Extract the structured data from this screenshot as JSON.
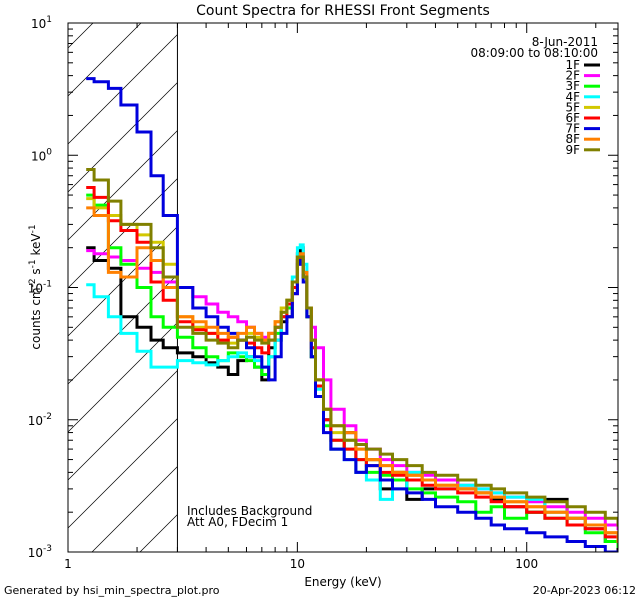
{
  "chart_data": {
    "type": "line",
    "title": "Count Spectra for RHESSI Front Segments",
    "xlabel": "Energy (keV)",
    "ylabel_parts": [
      "counts cm",
      "-2",
      " s",
      "-1",
      " keV",
      "-1"
    ],
    "xscale": "log",
    "yscale": "log",
    "xlim": [
      1,
      250
    ],
    "ylim": [
      0.001,
      10
    ],
    "x_ticks": [
      {
        "value": 1,
        "label": "1"
      },
      {
        "value": 10,
        "label": "10"
      },
      {
        "value": 100,
        "label": "100"
      }
    ],
    "y_ticks": [
      {
        "value": 10,
        "base": "10",
        "exp": "1"
      },
      {
        "value": 1,
        "base": "10",
        "exp": "0"
      },
      {
        "value": 0.1,
        "base": "10",
        "exp": "-1"
      },
      {
        "value": 0.01,
        "base": "10",
        "exp": "-2"
      },
      {
        "value": 0.001,
        "base": "10",
        "exp": "-3"
      }
    ],
    "date": "8-Jun-2011",
    "time_range": "08:09:00 to 08:10:00",
    "annotation_lines": [
      "Includes Background",
      "Att A0, FDecim 1"
    ],
    "hatched_region": [
      1,
      3
    ],
    "series": [
      {
        "name": "1F",
        "color": "#000000",
        "x": [
          1.2,
          1.3,
          1.5,
          1.7,
          2.0,
          2.3,
          2.6,
          3.0,
          3.5,
          4.0,
          4.5,
          5.0,
          5.5,
          6.0,
          6.5,
          7.0,
          7.5,
          8.0,
          8.5,
          9.0,
          9.5,
          10.0,
          10.3,
          10.6,
          11.0,
          11.5,
          12.0,
          13.0,
          14.0,
          16.0,
          18.0,
          20.0,
          23.0,
          26.0,
          30.0,
          35.0,
          40.0,
          50.0,
          60.0,
          70.0,
          80.0,
          100.0,
          120.0,
          150.0,
          180.0,
          220.0,
          250.0
        ],
        "y": [
          0.2,
          0.16,
          0.14,
          0.06,
          0.05,
          0.04,
          0.035,
          0.032,
          0.03,
          0.027,
          0.025,
          0.022,
          0.028,
          0.03,
          0.025,
          0.02,
          0.035,
          0.04,
          0.055,
          0.06,
          0.09,
          0.18,
          0.2,
          0.13,
          0.06,
          0.03,
          0.015,
          0.01,
          0.006,
          0.008,
          0.004,
          0.005,
          0.003,
          0.004,
          0.0025,
          0.003,
          0.0035,
          0.003,
          0.0028,
          0.0025,
          0.0022,
          0.002,
          0.0025,
          0.0018,
          0.0015,
          0.0012,
          0.001
        ]
      },
      {
        "name": "2F",
        "color": "#ff00ff",
        "x": [
          1.2,
          1.3,
          1.5,
          1.7,
          2.0,
          2.3,
          2.6,
          3.0,
          3.5,
          4.0,
          4.5,
          5.0,
          5.5,
          6.0,
          6.5,
          7.0,
          7.5,
          8.0,
          8.5,
          9.0,
          9.5,
          10.0,
          10.3,
          10.6,
          11.0,
          11.5,
          12.0,
          13.0,
          14.0,
          16.0,
          18.0,
          20.0,
          23.0,
          26.0,
          30.0,
          35.0,
          40.0,
          50.0,
          60.0,
          70.0,
          80.0,
          100.0,
          120.0,
          150.0,
          180.0,
          220.0,
          250.0
        ],
        "y": [
          0.19,
          0.18,
          0.17,
          0.16,
          0.14,
          0.13,
          0.11,
          0.1,
          0.085,
          0.075,
          0.065,
          0.06,
          0.055,
          0.05,
          0.045,
          0.042,
          0.045,
          0.05,
          0.06,
          0.07,
          0.09,
          0.15,
          0.17,
          0.12,
          0.07,
          0.05,
          0.035,
          0.02,
          0.012,
          0.009,
          0.007,
          0.006,
          0.005,
          0.0045,
          0.004,
          0.0038,
          0.0035,
          0.0032,
          0.003,
          0.0028,
          0.0026,
          0.0024,
          0.0022,
          0.002,
          0.0018,
          0.0016,
          0.0015
        ]
      },
      {
        "name": "3F",
        "color": "#00ff00",
        "x": [
          1.2,
          1.3,
          1.5,
          1.7,
          2.0,
          2.3,
          2.6,
          3.0,
          3.5,
          4.0,
          4.5,
          5.0,
          5.5,
          6.0,
          6.5,
          7.0,
          7.5,
          8.0,
          8.5,
          9.0,
          9.5,
          10.0,
          10.3,
          10.6,
          11.0,
          11.5,
          12.0,
          13.0,
          14.0,
          16.0,
          18.0,
          20.0,
          23.0,
          26.0,
          30.0,
          35.0,
          40.0,
          50.0,
          60.0,
          70.0,
          80.0,
          100.0,
          120.0,
          150.0,
          180.0,
          220.0,
          250.0
        ],
        "y": [
          0.5,
          0.42,
          0.2,
          0.15,
          0.1,
          0.06,
          0.05,
          0.042,
          0.035,
          0.03,
          0.028,
          0.032,
          0.03,
          0.028,
          0.025,
          0.022,
          0.03,
          0.045,
          0.06,
          0.07,
          0.1,
          0.16,
          0.17,
          0.12,
          0.06,
          0.03,
          0.015,
          0.009,
          0.007,
          0.006,
          0.005,
          0.004,
          0.0038,
          0.0035,
          0.003,
          0.0028,
          0.0026,
          0.0024,
          0.002,
          0.0022,
          0.0018,
          0.002,
          0.0018,
          0.0016,
          0.0014,
          0.0012,
          0.0011
        ]
      },
      {
        "name": "4F",
        "color": "#00ffff",
        "x": [
          1.2,
          1.3,
          1.5,
          1.7,
          2.0,
          2.3,
          2.6,
          3.0,
          3.5,
          4.0,
          4.5,
          5.0,
          5.5,
          6.0,
          6.5,
          7.0,
          7.5,
          8.0,
          8.5,
          9.0,
          9.5,
          10.0,
          10.3,
          10.6,
          11.0,
          11.5,
          12.0,
          13.0,
          14.0,
          16.0,
          18.0,
          20.0,
          23.0,
          26.0,
          30.0,
          35.0,
          40.0,
          50.0,
          60.0,
          70.0,
          80.0,
          100.0,
          120.0,
          150.0,
          180.0,
          220.0,
          250.0
        ],
        "y": [
          0.105,
          0.085,
          0.06,
          0.045,
          0.033,
          0.025,
          0.025,
          0.028,
          0.027,
          0.026,
          0.028,
          0.03,
          0.032,
          0.03,
          0.028,
          0.025,
          0.03,
          0.04,
          0.06,
          0.08,
          0.12,
          0.2,
          0.21,
          0.15,
          0.07,
          0.035,
          0.017,
          0.01,
          0.006,
          0.005,
          0.004,
          0.0035,
          0.0025,
          0.003,
          0.004,
          0.0035,
          0.003,
          0.0032,
          0.003,
          0.0028,
          0.0026,
          0.0025,
          0.002,
          0.0018,
          0.0015,
          0.0013,
          0.0012
        ]
      },
      {
        "name": "5F",
        "color": "#d2c800",
        "x": [
          1.2,
          1.3,
          1.5,
          1.7,
          2.0,
          2.3,
          2.6,
          3.0,
          3.5,
          4.0,
          4.5,
          5.0,
          5.5,
          6.0,
          6.5,
          7.0,
          7.5,
          8.0,
          8.5,
          9.0,
          9.5,
          10.0,
          10.3,
          10.6,
          11.0,
          11.5,
          12.0,
          13.0,
          14.0,
          16.0,
          18.0,
          20.0,
          23.0,
          26.0,
          30.0,
          35.0,
          40.0,
          50.0,
          60.0,
          70.0,
          80.0,
          100.0,
          120.0,
          150.0,
          180.0,
          220.0,
          250.0
        ],
        "y": [
          0.47,
          0.4,
          0.35,
          0.3,
          0.25,
          0.22,
          0.15,
          0.06,
          0.05,
          0.045,
          0.04,
          0.038,
          0.04,
          0.045,
          0.042,
          0.04,
          0.045,
          0.055,
          0.07,
          0.08,
          0.11,
          0.17,
          0.17,
          0.12,
          0.07,
          0.04,
          0.02,
          0.012,
          0.008,
          0.007,
          0.006,
          0.005,
          0.0045,
          0.004,
          0.0038,
          0.0035,
          0.0032,
          0.003,
          0.0028,
          0.0026,
          0.0024,
          0.0022,
          0.002,
          0.0018,
          0.0016,
          0.0014,
          0.0012
        ]
      },
      {
        "name": "6F",
        "color": "#ff0000",
        "x": [
          1.2,
          1.3,
          1.5,
          1.7,
          2.0,
          2.3,
          2.6,
          3.0,
          3.5,
          4.0,
          4.5,
          5.0,
          5.5,
          6.0,
          6.5,
          7.0,
          7.5,
          8.0,
          8.5,
          9.0,
          9.5,
          10.0,
          10.3,
          10.6,
          11.0,
          11.5,
          12.0,
          13.0,
          14.0,
          16.0,
          18.0,
          20.0,
          23.0,
          26.0,
          30.0,
          35.0,
          40.0,
          50.0,
          60.0,
          70.0,
          80.0,
          100.0,
          120.0,
          150.0,
          180.0,
          220.0,
          250.0
        ],
        "y": [
          0.57,
          0.48,
          0.32,
          0.27,
          0.22,
          0.11,
          0.08,
          0.055,
          0.048,
          0.045,
          0.04,
          0.042,
          0.04,
          0.038,
          0.035,
          0.032,
          0.04,
          0.05,
          0.06,
          0.075,
          0.1,
          0.16,
          0.17,
          0.12,
          0.07,
          0.035,
          0.018,
          0.01,
          0.007,
          0.006,
          0.005,
          0.0045,
          0.004,
          0.0038,
          0.0035,
          0.0032,
          0.003,
          0.0028,
          0.0026,
          0.0024,
          0.0022,
          0.002,
          0.0018,
          0.0016,
          0.0015,
          0.0013,
          0.0012
        ]
      },
      {
        "name": "7F",
        "color": "#0000dd",
        "x": [
          1.2,
          1.3,
          1.5,
          1.7,
          2.0,
          2.3,
          2.6,
          3.0,
          3.5,
          4.0,
          4.5,
          5.0,
          5.5,
          6.0,
          6.5,
          7.0,
          7.5,
          8.0,
          8.5,
          9.0,
          9.5,
          10.0,
          10.3,
          10.6,
          11.0,
          11.5,
          12.0,
          13.0,
          14.0,
          16.0,
          18.0,
          20.0,
          23.0,
          26.0,
          30.0,
          35.0,
          40.0,
          50.0,
          60.0,
          70.0,
          80.0,
          100.0,
          120.0,
          150.0,
          180.0,
          220.0,
          250.0
        ],
        "y": [
          3.8,
          3.6,
          3.2,
          2.4,
          1.5,
          0.7,
          0.35,
          0.1,
          0.07,
          0.06,
          0.05,
          0.045,
          0.04,
          0.035,
          0.03,
          0.025,
          0.02,
          0.03,
          0.045,
          0.06,
          0.09,
          0.15,
          0.16,
          0.11,
          0.06,
          0.03,
          0.015,
          0.008,
          0.006,
          0.005,
          0.004,
          0.0045,
          0.0035,
          0.003,
          0.0028,
          0.0025,
          0.0022,
          0.002,
          0.0018,
          0.0016,
          0.0015,
          0.0014,
          0.0013,
          0.0012,
          0.0011,
          0.001,
          0.001
        ]
      },
      {
        "name": "8F",
        "color": "#ff8000",
        "x": [
          1.2,
          1.3,
          1.5,
          1.7,
          2.0,
          2.3,
          2.6,
          3.0,
          3.5,
          4.0,
          4.5,
          5.0,
          5.5,
          6.0,
          6.5,
          7.0,
          7.5,
          8.0,
          8.5,
          9.0,
          9.5,
          10.0,
          10.3,
          10.6,
          11.0,
          11.5,
          12.0,
          13.0,
          14.0,
          16.0,
          18.0,
          20.0,
          23.0,
          26.0,
          30.0,
          35.0,
          40.0,
          50.0,
          60.0,
          70.0,
          80.0,
          100.0,
          120.0,
          150.0,
          180.0,
          220.0,
          250.0
        ],
        "y": [
          0.4,
          0.35,
          0.13,
          0.12,
          0.2,
          0.16,
          0.1,
          0.06,
          0.055,
          0.05,
          0.045,
          0.042,
          0.045,
          0.05,
          0.045,
          0.04,
          0.045,
          0.055,
          0.065,
          0.08,
          0.11,
          0.17,
          0.18,
          0.13,
          0.07,
          0.04,
          0.02,
          0.012,
          0.009,
          0.008,
          0.006,
          0.005,
          0.0045,
          0.004,
          0.0038,
          0.0035,
          0.0032,
          0.003,
          0.0028,
          0.0026,
          0.0024,
          0.0022,
          0.002,
          0.0018,
          0.0016,
          0.0014,
          0.0012
        ]
      },
      {
        "name": "9F",
        "color": "#808000",
        "x": [
          1.2,
          1.3,
          1.5,
          1.7,
          2.0,
          2.3,
          2.6,
          3.0,
          3.5,
          4.0,
          4.5,
          5.0,
          5.5,
          6.0,
          6.5,
          7.0,
          7.5,
          8.0,
          8.5,
          9.0,
          9.5,
          10.0,
          10.3,
          10.6,
          11.0,
          11.5,
          12.0,
          13.0,
          14.0,
          16.0,
          18.0,
          20.0,
          23.0,
          26.0,
          30.0,
          35.0,
          40.0,
          50.0,
          60.0,
          70.0,
          80.0,
          100.0,
          120.0,
          150.0,
          180.0,
          220.0,
          250.0
        ],
        "y": [
          0.78,
          0.65,
          0.45,
          0.3,
          0.3,
          0.2,
          0.12,
          0.05,
          0.045,
          0.04,
          0.038,
          0.035,
          0.04,
          0.042,
          0.04,
          0.038,
          0.04,
          0.05,
          0.065,
          0.08,
          0.11,
          0.17,
          0.17,
          0.12,
          0.07,
          0.04,
          0.02,
          0.012,
          0.009,
          0.007,
          0.0065,
          0.006,
          0.0055,
          0.005,
          0.0045,
          0.004,
          0.0038,
          0.0035,
          0.0032,
          0.003,
          0.0028,
          0.0026,
          0.0024,
          0.0022,
          0.002,
          0.0018,
          0.0016
        ]
      }
    ]
  },
  "footer": {
    "generated_by": "Generated by hsi_min_spectra_plot.pro",
    "timestamp": "20-Apr-2023 06:12"
  }
}
